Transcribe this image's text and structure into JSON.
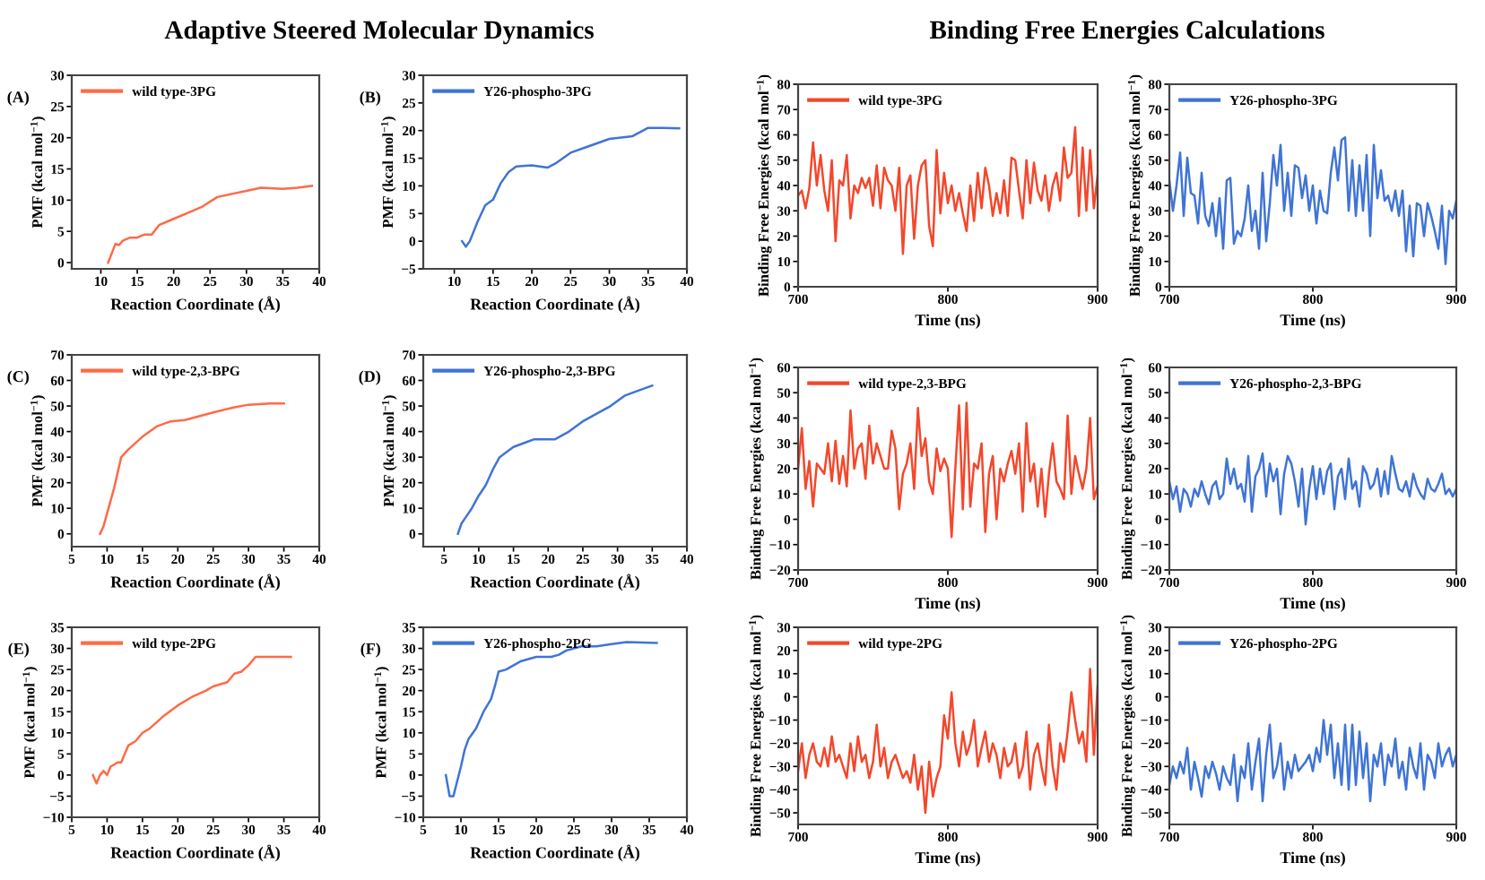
{
  "chart_data": [
    {
      "type": "line",
      "title": "Adaptive Steered Molecular Dynamics",
      "annotations": [
        "(A)"
      ],
      "xlabel": "Reaction Coordinate (Å)",
      "ylabel": "PMF (kcal mol$^{−1}$)",
      "xlim": [
        6,
        40
      ],
      "xticks": [
        10,
        15,
        20,
        25,
        30,
        35,
        40
      ],
      "ylim": [
        -1,
        30
      ],
      "yticks": [
        0,
        5,
        10,
        15,
        20,
        25,
        30
      ],
      "grid": false,
      "legend": "top left",
      "series": [
        {
          "name": "wild type-3PG",
          "color": "#ff6a45",
          "x": [
            11,
            11.5,
            12,
            12.5,
            13,
            14,
            15,
            16,
            17,
            18,
            20,
            22,
            24,
            26,
            28,
            30,
            32,
            35,
            37,
            39
          ],
          "values": [
            0,
            1.5,
            3,
            2.8,
            3.5,
            4,
            4,
            4.5,
            4.5,
            6,
            7,
            8,
            9,
            10.5,
            11,
            11.5,
            12,
            11.8,
            12,
            12.3
          ]
        }
      ]
    },
    {
      "type": "line",
      "annotations": [
        "(B)"
      ],
      "xlabel": "Reaction Coordinate (Å)",
      "ylabel": "PMF (kcal mol$^{−1}$)",
      "xlim": [
        6,
        40
      ],
      "xticks": [
        10,
        15,
        20,
        25,
        30,
        35,
        40
      ],
      "ylim": [
        -5,
        30
      ],
      "yticks": [
        -5,
        0,
        5,
        10,
        15,
        20,
        25,
        30
      ],
      "grid": false,
      "legend": "top left",
      "series": [
        {
          "name": "Y26-phospho-3PG",
          "color": "#3f74d6",
          "x": [
            11,
            11.5,
            12,
            13,
            14,
            15,
            16,
            17,
            18,
            20,
            22,
            23,
            25,
            27,
            30,
            33,
            35,
            37,
            39
          ],
          "values": [
            0,
            -1,
            0,
            3.5,
            6.5,
            7.5,
            10.5,
            12.5,
            13.5,
            13.7,
            13.3,
            14,
            16,
            17,
            18.5,
            19,
            20.5,
            20.5,
            20.4
          ]
        }
      ]
    },
    {
      "type": "line",
      "annotations": [
        "(C)"
      ],
      "xlabel": "Reaction Coordinate (Å)",
      "ylabel": "PMF (kcal mol$^{−1}$)",
      "xlim": [
        5,
        40
      ],
      "xticks": [
        5,
        10,
        15,
        20,
        25,
        30,
        35,
        40
      ],
      "ylim": [
        -5,
        70
      ],
      "yticks": [
        0,
        10,
        20,
        30,
        40,
        50,
        60,
        70
      ],
      "grid": false,
      "legend": "top left",
      "series": [
        {
          "name": "wild type-2,3-BPG",
          "color": "#ff6a45",
          "x": [
            9,
            9.5,
            10,
            11,
            12,
            13,
            15,
            17,
            19,
            21,
            23,
            25,
            28,
            30,
            33,
            35
          ],
          "values": [
            0,
            3,
            8,
            18,
            30,
            33,
            38,
            42,
            44,
            44.5,
            46,
            47.5,
            49.5,
            50.5,
            51,
            51
          ]
        }
      ]
    },
    {
      "type": "line",
      "annotations": [
        "(D)"
      ],
      "xlabel": "Reaction Coordinate (Å)",
      "ylabel": "PMF (kcal mol$^{−1}$)",
      "xlim": [
        2,
        40
      ],
      "xticks": [
        5,
        10,
        15,
        20,
        25,
        30,
        35,
        40
      ],
      "ylim": [
        -5,
        70
      ],
      "yticks": [
        0,
        10,
        20,
        30,
        40,
        50,
        60,
        70
      ],
      "grid": false,
      "legend": "top left",
      "series": [
        {
          "name": "Y26-phospho-2,3-BPG",
          "color": "#3f74d6",
          "x": [
            7,
            7.5,
            8,
            9,
            10,
            11,
            12,
            13,
            15,
            17,
            18,
            21,
            23,
            25,
            27,
            29,
            31,
            33,
            35
          ],
          "values": [
            0,
            4,
            6,
            10,
            15,
            19,
            25,
            30,
            34,
            36,
            37,
            37,
            40,
            44,
            47,
            50,
            54,
            56,
            58
          ]
        }
      ]
    },
    {
      "type": "line",
      "annotations": [
        "(E)"
      ],
      "xlabel": "Reaction Coordinate (Å)",
      "ylabel": "PMF (kcal mol$^{−1}$)",
      "xlim": [
        5,
        40
      ],
      "xticks": [
        5,
        10,
        15,
        20,
        25,
        30,
        35,
        40
      ],
      "ylim": [
        -10,
        35
      ],
      "yticks": [
        -10,
        -5,
        0,
        5,
        10,
        15,
        20,
        25,
        30,
        35
      ],
      "grid": false,
      "legend": "top left",
      "series": [
        {
          "name": "wild type-2PG",
          "color": "#ff6a45",
          "x": [
            8,
            8.5,
            9,
            9.5,
            10,
            10.5,
            11.5,
            12,
            12.5,
            13,
            14,
            15,
            16,
            18,
            20,
            22,
            24,
            25,
            27,
            28,
            29,
            30,
            31,
            33,
            36
          ],
          "values": [
            0,
            -2,
            0,
            1,
            0,
            2,
            3,
            3,
            5,
            7,
            8,
            10,
            11,
            14,
            16.5,
            18.5,
            20,
            21,
            22,
            24,
            24.5,
            26,
            28,
            28,
            28
          ]
        }
      ]
    },
    {
      "type": "line",
      "annotations": [
        "(F)"
      ],
      "xlabel": "Reaction Coordinate (Å)",
      "ylabel": "PMF (kcal mol$^{−1}$)",
      "xlim": [
        5,
        40
      ],
      "xticks": [
        5,
        10,
        15,
        20,
        25,
        30,
        35,
        40
      ],
      "ylim": [
        -10,
        35
      ],
      "yticks": [
        -10,
        -5,
        0,
        5,
        10,
        15,
        20,
        25,
        30,
        35
      ],
      "grid": false,
      "legend": "top left",
      "series": [
        {
          "name": "Y26-phospho-2PG",
          "color": "#3f74d6",
          "x": [
            8,
            8.5,
            9,
            10,
            10.5,
            11,
            12,
            13,
            14,
            14.5,
            15,
            16,
            18,
            20,
            22,
            23,
            24,
            26,
            28,
            30,
            32,
            36
          ],
          "values": [
            0,
            -5,
            -5,
            2,
            6,
            8.5,
            11,
            15,
            18,
            21,
            24.5,
            25,
            27,
            28,
            28,
            28.5,
            29.5,
            30.5,
            30.5,
            31,
            31.5,
            31.3
          ]
        }
      ]
    },
    {
      "type": "line",
      "title": "Binding Free Energies Calculations",
      "xlabel": "Time (ns)",
      "ylabel": "Binding Free Energies (kcal mol$^{−1}$)",
      "xlim": [
        700,
        900
      ],
      "xticks": [
        700,
        800,
        900
      ],
      "ylim": [
        0,
        80
      ],
      "yticks": [
        0,
        10,
        20,
        30,
        40,
        50,
        60,
        70,
        80
      ],
      "grid": false,
      "legend": "top left",
      "x": [
        700,
        702.5,
        705,
        707.5,
        710,
        712.5,
        715,
        717.5,
        720,
        722.5,
        725,
        727.5,
        730,
        732.5,
        735,
        737.5,
        740,
        742.5,
        745,
        747.5,
        750,
        752.5,
        755,
        757.5,
        760,
        762.5,
        765,
        767.5,
        770,
        772.5,
        775,
        777.5,
        780,
        782.5,
        785,
        787.5,
        790,
        792.5,
        795,
        797.5,
        800,
        802.5,
        805,
        807.5,
        810,
        812.5,
        815,
        817.5,
        820,
        822.5,
        825,
        827.5,
        830,
        832.5,
        835,
        837.5,
        840,
        842.5,
        845,
        847.5,
        850,
        852.5,
        855,
        857.5,
        860,
        862.5,
        865,
        867.5,
        870,
        872.5,
        875,
        877.5,
        880,
        882.5,
        885,
        887.5,
        890,
        892.5,
        895,
        897.5,
        900
      ],
      "series": [
        {
          "name": "wild type-3PG",
          "color": "#f4472b",
          "values": [
            36,
            38,
            31,
            39,
            57,
            40,
            52,
            38,
            30,
            50,
            18,
            42,
            40,
            52,
            27,
            40,
            37,
            43,
            39,
            43,
            32,
            48,
            31,
            47,
            42,
            40,
            30,
            47,
            13,
            40,
            44,
            19,
            40,
            48,
            50,
            24,
            16,
            54,
            29,
            45,
            33,
            40,
            30,
            37,
            29,
            22,
            40,
            26,
            45,
            31,
            47,
            40,
            28,
            37,
            29,
            42,
            28,
            51,
            50,
            38,
            27,
            50,
            33,
            49,
            38,
            34,
            44,
            30,
            40,
            45,
            34,
            55,
            43,
            45,
            63,
            28,
            55,
            30,
            54,
            31,
            44
          ]
        }
      ]
    },
    {
      "type": "line",
      "xlabel": "Time (ns)",
      "ylabel": "Binding Free Energies (kcal mol$^{−1}$)",
      "xlim": [
        700,
        900
      ],
      "xticks": [
        700,
        800,
        900
      ],
      "ylim": [
        0,
        80
      ],
      "yticks": [
        0,
        10,
        20,
        30,
        40,
        50,
        60,
        70,
        80
      ],
      "grid": false,
      "legend": "top left",
      "x": [
        700,
        702.5,
        705,
        707.5,
        710,
        712.5,
        715,
        717.5,
        720,
        722.5,
        725,
        727.5,
        730,
        732.5,
        735,
        737.5,
        740,
        742.5,
        745,
        747.5,
        750,
        752.5,
        755,
        757.5,
        760,
        762.5,
        765,
        767.5,
        770,
        772.5,
        775,
        777.5,
        780,
        782.5,
        785,
        787.5,
        790,
        792.5,
        795,
        797.5,
        800,
        802.5,
        805,
        807.5,
        810,
        812.5,
        815,
        817.5,
        820,
        822.5,
        825,
        827.5,
        830,
        832.5,
        835,
        837.5,
        840,
        842.5,
        845,
        847.5,
        850,
        852.5,
        855,
        857.5,
        860,
        862.5,
        865,
        867.5,
        870,
        872.5,
        875,
        877.5,
        880,
        882.5,
        885,
        887.5,
        890,
        892.5,
        895,
        897.5,
        900
      ],
      "series": [
        {
          "name": "Y26-phospho-3PG",
          "color": "#3f74d6",
          "values": [
            42,
            30,
            40,
            53,
            28,
            51,
            37,
            36,
            25,
            45,
            28,
            24,
            33,
            20,
            35,
            15,
            42,
            43,
            17,
            22,
            20,
            27,
            40,
            22,
            30,
            15,
            45,
            18,
            33,
            52,
            40,
            56,
            30,
            45,
            28,
            48,
            47,
            35,
            44,
            30,
            40,
            25,
            38,
            30,
            29,
            45,
            55,
            42,
            58,
            59,
            30,
            50,
            28,
            48,
            30,
            52,
            20,
            56,
            35,
            46,
            34,
            36,
            30,
            38,
            28,
            38,
            14,
            32,
            12,
            33,
            32,
            20,
            33,
            28,
            22,
            15,
            32,
            9,
            30,
            27,
            34
          ]
        }
      ]
    },
    {
      "type": "line",
      "xlabel": "Time (ns)",
      "ylabel": "Binding Free Energies (kcal mol$^{−1}$)",
      "xlim": [
        700,
        900
      ],
      "xticks": [
        700,
        800,
        900
      ],
      "ylim": [
        -20,
        60
      ],
      "yticks": [
        -20,
        -10,
        0,
        10,
        20,
        30,
        40,
        50,
        60
      ],
      "grid": false,
      "legend": "top left",
      "x": [
        700,
        702.5,
        705,
        707.5,
        710,
        712.5,
        715,
        717.5,
        720,
        722.5,
        725,
        727.5,
        730,
        732.5,
        735,
        737.5,
        740,
        742.5,
        745,
        747.5,
        750,
        752.5,
        755,
        757.5,
        760,
        762.5,
        765,
        767.5,
        770,
        772.5,
        775,
        777.5,
        780,
        782.5,
        785,
        787.5,
        790,
        792.5,
        795,
        797.5,
        800,
        802.5,
        805,
        807.5,
        810,
        812.5,
        815,
        817.5,
        820,
        822.5,
        825,
        827.5,
        830,
        832.5,
        835,
        837.5,
        840,
        842.5,
        845,
        847.5,
        850,
        852.5,
        855,
        857.5,
        860,
        862.5,
        865,
        867.5,
        870,
        872.5,
        875,
        877.5,
        880,
        882.5,
        885,
        887.5,
        890,
        892.5,
        895,
        897.5,
        900
      ],
      "series": [
        {
          "name": "wild type-2,3-BPG",
          "color": "#f4472b",
          "values": [
            20,
            36,
            12,
            23,
            5,
            22,
            20,
            18,
            30,
            15,
            31,
            14,
            25,
            13,
            43,
            20,
            28,
            30,
            16,
            37,
            22,
            30,
            25,
            20,
            20,
            35,
            28,
            4,
            18,
            22,
            30,
            12,
            44,
            25,
            32,
            15,
            10,
            28,
            19,
            24,
            20,
            -7,
            20,
            45,
            4,
            46,
            5,
            22,
            20,
            30,
            -5,
            18,
            25,
            0,
            20,
            15,
            22,
            27,
            18,
            30,
            3,
            38,
            15,
            22,
            5,
            20,
            1,
            18,
            30,
            15,
            12,
            8,
            41,
            10,
            25,
            18,
            12,
            20,
            40,
            8,
            13
          ]
        }
      ]
    },
    {
      "type": "line",
      "xlabel": "Time (ns)",
      "ylabel": "Binding Free Energies (kcal mol$^{−1}$)",
      "xlim": [
        700,
        900
      ],
      "xticks": [
        700,
        800,
        900
      ],
      "ylim": [
        -20,
        60
      ],
      "yticks": [
        -20,
        -10,
        0,
        10,
        20,
        30,
        40,
        50,
        60
      ],
      "grid": false,
      "legend": "top left",
      "x": [
        700,
        702.5,
        705,
        707.5,
        710,
        712.5,
        715,
        717.5,
        720,
        722.5,
        725,
        727.5,
        730,
        732.5,
        735,
        737.5,
        740,
        742.5,
        745,
        747.5,
        750,
        752.5,
        755,
        757.5,
        760,
        762.5,
        765,
        767.5,
        770,
        772.5,
        775,
        777.5,
        780,
        782.5,
        785,
        787.5,
        790,
        792.5,
        795,
        797.5,
        800,
        802.5,
        805,
        807.5,
        810,
        812.5,
        815,
        817.5,
        820,
        822.5,
        825,
        827.5,
        830,
        832.5,
        835,
        837.5,
        840,
        842.5,
        845,
        847.5,
        850,
        852.5,
        855,
        857.5,
        860,
        862.5,
        865,
        867.5,
        870,
        872.5,
        875,
        877.5,
        880,
        882.5,
        885,
        887.5,
        890,
        892.5,
        895,
        897.5,
        900
      ],
      "series": [
        {
          "name": "Y26-phospho-2,3-BPG",
          "color": "#3f74d6",
          "values": [
            15,
            8,
            13,
            3,
            12,
            10,
            5,
            12,
            9,
            15,
            10,
            6,
            13,
            15,
            8,
            10,
            24,
            14,
            20,
            12,
            14,
            7,
            25,
            3,
            17,
            20,
            26,
            9,
            22,
            15,
            20,
            2,
            18,
            25,
            22,
            15,
            5,
            20,
            -2,
            12,
            21,
            8,
            20,
            10,
            19,
            22,
            4,
            17,
            20,
            8,
            24,
            12,
            15,
            5,
            21,
            18,
            12,
            14,
            20,
            9,
            19,
            10,
            25,
            18,
            12,
            11,
            15,
            9,
            18,
            13,
            10,
            8,
            16,
            12,
            11,
            14,
            18,
            10,
            12,
            9,
            12
          ]
        }
      ]
    },
    {
      "type": "line",
      "xlabel": "Time (ns)",
      "ylabel": "Binding Free Energies (kcal mol$^{−1}$)",
      "xlim": [
        700,
        900
      ],
      "xticks": [
        700,
        800,
        900
      ],
      "ylim": [
        -55,
        30
      ],
      "yticks": [
        -50,
        -40,
        -30,
        -20,
        -10,
        0,
        10,
        20,
        30
      ],
      "grid": false,
      "legend": "top left",
      "x": [
        700,
        702.5,
        705,
        707.5,
        710,
        712.5,
        715,
        717.5,
        720,
        722.5,
        725,
        727.5,
        730,
        732.5,
        735,
        737.5,
        740,
        742.5,
        745,
        747.5,
        750,
        752.5,
        755,
        757.5,
        760,
        762.5,
        765,
        767.5,
        770,
        772.5,
        775,
        777.5,
        780,
        782.5,
        785,
        787.5,
        790,
        792.5,
        795,
        797.5,
        800,
        802.5,
        805,
        807.5,
        810,
        812.5,
        815,
        817.5,
        820,
        822.5,
        825,
        827.5,
        830,
        832.5,
        835,
        837.5,
        840,
        842.5,
        845,
        847.5,
        850,
        852.5,
        855,
        857.5,
        860,
        862.5,
        865,
        867.5,
        870,
        872.5,
        875,
        877.5,
        880,
        882.5,
        885,
        887.5,
        890,
        892.5,
        895,
        897.5,
        900
      ],
      "series": [
        {
          "name": "wild type-2PG",
          "color": "#f4472b",
          "values": [
            -32,
            -20,
            -35,
            -25,
            -20,
            -28,
            -30,
            -22,
            -30,
            -17,
            -28,
            -25,
            -30,
            -35,
            -20,
            -32,
            -17,
            -28,
            -25,
            -35,
            -28,
            -12,
            -30,
            -22,
            -35,
            -28,
            -25,
            -30,
            -35,
            -32,
            -37,
            -25,
            -40,
            -30,
            -50,
            -28,
            -43,
            -35,
            -30,
            -8,
            -18,
            2,
            -20,
            -30,
            -15,
            -25,
            -20,
            -10,
            -30,
            -22,
            -15,
            -28,
            -20,
            -25,
            -35,
            -22,
            -30,
            -28,
            -20,
            -35,
            -30,
            -15,
            -40,
            -25,
            -20,
            -30,
            -38,
            -12,
            -30,
            -40,
            -20,
            -28,
            -15,
            2,
            -10,
            -20,
            -15,
            -28,
            12,
            -25,
            5
          ]
        }
      ]
    },
    {
      "type": "line",
      "xlabel": "Time (ns)",
      "ylabel": "Binding Free Energies (kcal mol$^{−1}$)",
      "xlim": [
        700,
        900
      ],
      "xticks": [
        700,
        800,
        900
      ],
      "ylim": [
        -55,
        30
      ],
      "yticks": [
        -50,
        -40,
        -30,
        -20,
        -10,
        0,
        10,
        20,
        30
      ],
      "grid": false,
      "legend": "top left",
      "x": [
        700,
        702.5,
        705,
        707.5,
        710,
        712.5,
        715,
        717.5,
        720,
        722.5,
        725,
        727.5,
        730,
        732.5,
        735,
        737.5,
        740,
        742.5,
        745,
        747.5,
        750,
        752.5,
        755,
        757.5,
        760,
        762.5,
        765,
        767.5,
        770,
        772.5,
        775,
        777.5,
        780,
        782.5,
        785,
        787.5,
        790,
        792.5,
        795,
        797.5,
        800,
        802.5,
        805,
        807.5,
        810,
        812.5,
        815,
        817.5,
        820,
        822.5,
        825,
        827.5,
        830,
        832.5,
        835,
        837.5,
        840,
        842.5,
        845,
        847.5,
        850,
        852.5,
        855,
        857.5,
        860,
        862.5,
        865,
        867.5,
        870,
        872.5,
        875,
        877.5,
        880,
        882.5,
        885,
        887.5,
        890,
        892.5,
        895,
        897.5,
        900
      ],
      "series": [
        {
          "name": "Y26-phospho-2PG",
          "color": "#3f74d6",
          "values": [
            -38,
            -30,
            -35,
            -28,
            -33,
            -22,
            -40,
            -28,
            -35,
            -43,
            -30,
            -35,
            -28,
            -33,
            -40,
            -30,
            -35,
            -38,
            -25,
            -45,
            -30,
            -35,
            -20,
            -40,
            -28,
            -18,
            -45,
            -25,
            -12,
            -35,
            -30,
            -20,
            -40,
            -28,
            -35,
            -25,
            -32,
            -30,
            -28,
            -25,
            -32,
            -22,
            -28,
            -10,
            -25,
            -12,
            -35,
            -20,
            -38,
            -12,
            -40,
            -12,
            -38,
            -15,
            -35,
            -20,
            -45,
            -25,
            -30,
            -20,
            -38,
            -25,
            -30,
            -18,
            -35,
            -28,
            -40,
            -22,
            -30,
            -35,
            -20,
            -40,
            -25,
            -28,
            -35,
            -20,
            -30,
            -25,
            -22,
            -30,
            -25
          ]
        }
      ]
    }
  ]
}
